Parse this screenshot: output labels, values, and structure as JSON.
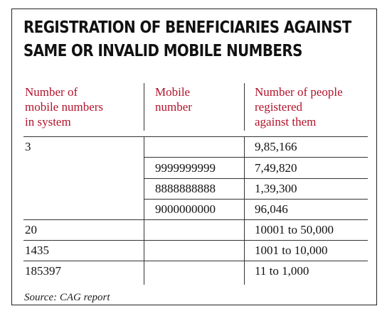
{
  "title": {
    "line1": "REGISTRATION OF BENEFICIARIES AGAINST",
    "line2": "SAME OR INVALID MOBILE NUMBERS"
  },
  "table": {
    "headers": [
      {
        "lines": [
          "Number of",
          "mobile numbers",
          "in system"
        ]
      },
      {
        "lines": [
          "Mobile",
          "number"
        ]
      },
      {
        "lines": [
          "Number of people",
          "registered",
          "against them"
        ]
      }
    ],
    "rows": [
      {
        "count": "3",
        "mobile": "",
        "people": "9,85,166"
      },
      {
        "count": "",
        "mobile": "9999999999",
        "people": "7,49,820"
      },
      {
        "count": "",
        "mobile": "8888888888",
        "people": "1,39,300"
      },
      {
        "count": "",
        "mobile": "9000000000",
        "people": "96,046"
      },
      {
        "count": "20",
        "mobile": "",
        "people": "10001 to 50,000"
      },
      {
        "count": "1435",
        "mobile": "",
        "people": "1001 to 10,000"
      },
      {
        "count": "185397",
        "mobile": "",
        "people": "11 to 1,000"
      }
    ]
  },
  "source": "Source: CAG report",
  "colors": {
    "header_red": "#b3122a",
    "text": "#111111",
    "border": "#222222"
  }
}
